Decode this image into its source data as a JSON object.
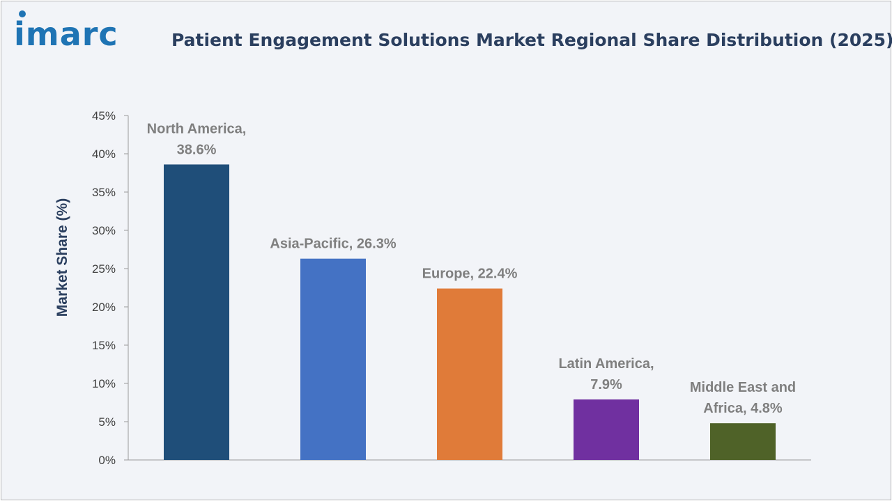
{
  "brand": {
    "logo_text": "imarc",
    "logo_color": "#1f74b4",
    "dot_color": "#1f74b4"
  },
  "chart_data": {
    "type": "bar",
    "title": "Patient Engagement Solutions Market Regional Share Distribution (2025)",
    "xlabel": "",
    "ylabel": "Market Share (%)",
    "ylim": [
      0,
      45
    ],
    "yticks": [
      0,
      5,
      10,
      15,
      20,
      25,
      30,
      35,
      40,
      45
    ],
    "ytick_suffix": "%",
    "grid": false,
    "legend": "none",
    "categories": [
      "North America",
      "Asia-Pacific",
      "Europe",
      "Latin America",
      "Middle East and Africa"
    ],
    "values": [
      38.6,
      26.3,
      22.4,
      7.9,
      4.8
    ],
    "colors": [
      "#1f4e79",
      "#4472c4",
      "#e07b39",
      "#7030a0",
      "#4f6228"
    ],
    "data_labels": [
      [
        "North America,",
        "38.6%"
      ],
      [
        "Asia-Pacific, 26.3%"
      ],
      [
        "Europe, 22.4%"
      ],
      [
        "Latin America,",
        "7.9%"
      ],
      [
        "Middle East and",
        "Africa, 4.8%"
      ]
    ]
  }
}
